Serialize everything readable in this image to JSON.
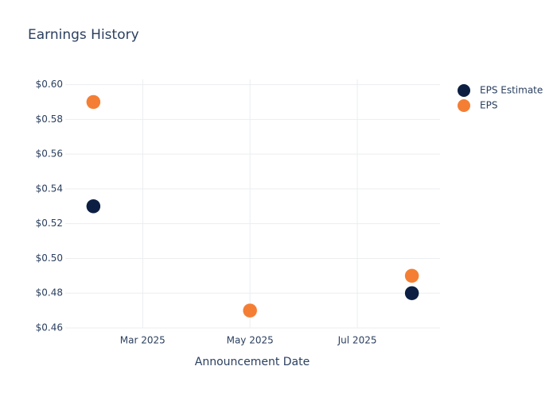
{
  "chart_data": {
    "type": "scatter",
    "title": "Earnings History",
    "x_label": "Announcement Date",
    "x": [
      "2025-02",
      "2025-05",
      "2025-08"
    ],
    "series": [
      {
        "name": "EPS Estimate",
        "color": "#0c1f43",
        "values": [
          0.53,
          0.47,
          0.48
        ]
      },
      {
        "name": "EPS",
        "color": "#f47f34",
        "values": [
          0.59,
          0.47,
          0.49
        ]
      }
    ],
    "xlim": [
      "2025-01-16",
      "2025-08-17"
    ],
    "xticks": [
      {
        "value": "2025-03",
        "label": "Mar 2025"
      },
      {
        "value": "2025-05",
        "label": "May 2025"
      },
      {
        "value": "2025-07",
        "label": "Jul 2025"
      }
    ],
    "ylim": [
      0.46,
      0.603
    ],
    "yticks": [
      {
        "value": 0.46,
        "label": "$0.46"
      },
      {
        "value": 0.48,
        "label": "$0.48"
      },
      {
        "value": 0.5,
        "label": "$0.50"
      },
      {
        "value": 0.52,
        "label": "$0.52"
      },
      {
        "value": 0.54,
        "label": "$0.54"
      },
      {
        "value": 0.56,
        "label": "$0.56"
      },
      {
        "value": 0.58,
        "label": "$0.58"
      },
      {
        "value": 0.6,
        "label": "$0.60"
      }
    ],
    "grid": true,
    "legend": "top-right"
  }
}
